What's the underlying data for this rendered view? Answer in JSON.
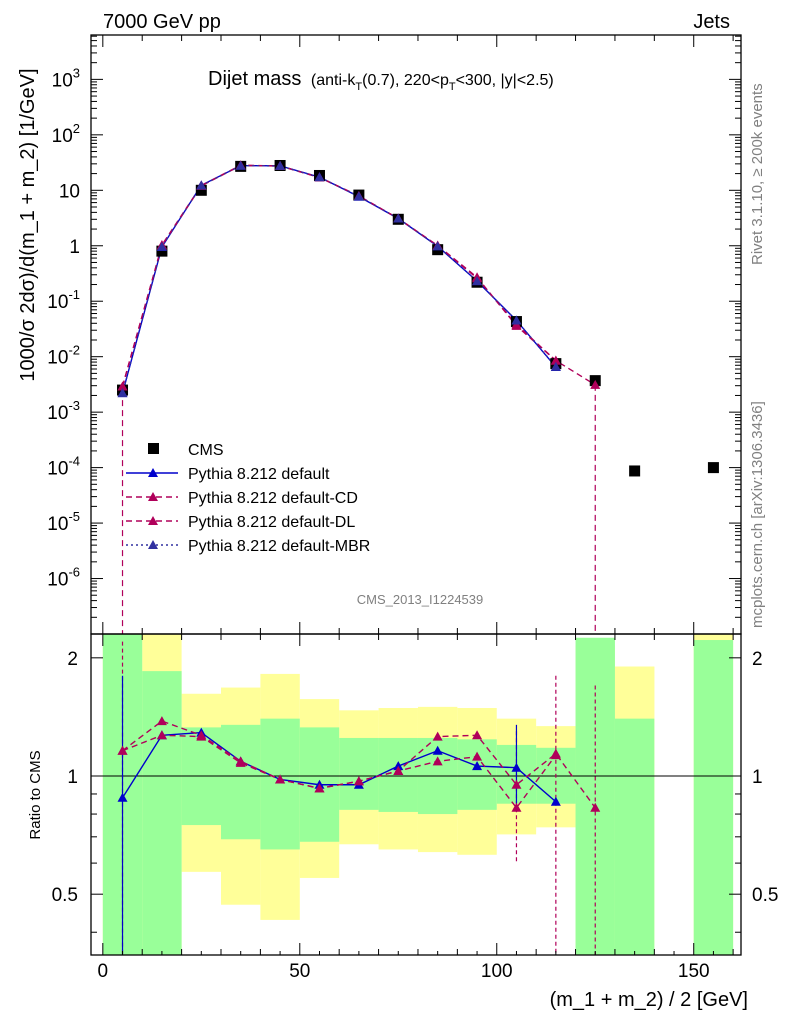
{
  "header": {
    "left": "7000 GeV pp",
    "right": "Jets"
  },
  "side": {
    "rivet": "Rivet 3.1.10, ≥ 200k events",
    "mcplots": "mcplots.cern.ch [arXiv:1306.3436]"
  },
  "plot": {
    "title_main": "Dijet mass",
    "title_cut": "(anti-k",
    "title_cut_sub": "T",
    "title_cut_2": "(0.7), 220<p",
    "title_cut_sub2": "T",
    "title_cut_3": "<300, |y|<2.5)",
    "analysis": "CMS_2013_I1224539",
    "ylabel": "1000/σ 2dσ)/d(m_1 + m_2) [1/GeV]",
    "ratio_ylabel": "Ratio to CMS",
    "xlabel": "(m_1 + m_2) / 2 [GeV]"
  },
  "legend": [
    {
      "label": "CMS",
      "color": "#000000",
      "style": "square"
    },
    {
      "label": "Pythia 8.212 default",
      "color": "#0000cc",
      "style": "solid"
    },
    {
      "label": "Pythia 8.212 default-CD",
      "color": "#b0005a",
      "style": "dashed"
    },
    {
      "label": "Pythia 8.212 default-DL",
      "color": "#b0005a",
      "style": "dashed"
    },
    {
      "label": "Pythia 8.212 default-MBR",
      "color": "#3030a0",
      "style": "dotted"
    }
  ],
  "chart_data": {
    "type": "line",
    "xlim": [
      -3,
      162
    ],
    "main_ylim_log10": [
      -7,
      3.8
    ],
    "ratio_ylim": [
      0.35,
      2.3
    ],
    "x_ticks": [
      0,
      50,
      100,
      150
    ],
    "main_y_ticks": [
      "10^{-6}",
      "10^{-5}",
      "10^{-4}",
      "10^{-3}",
      "10^{-2}",
      "10^{-1}",
      "1",
      "10",
      "10^{2}",
      "10^{3}"
    ],
    "ratio_y_ticks": [
      "0.5",
      "1",
      "2"
    ],
    "bin_edges": [
      0,
      10,
      20,
      30,
      40,
      50,
      60,
      70,
      80,
      90,
      100,
      110,
      120,
      130,
      140,
      150,
      160
    ],
    "series": [
      {
        "name": "CMS",
        "x": [
          5,
          15,
          25,
          35,
          45,
          55,
          65,
          75,
          85,
          95,
          105,
          115,
          125,
          135,
          155
        ],
        "y": [
          0.0025,
          0.8,
          10,
          27,
          28,
          18.5,
          8.2,
          3.0,
          0.85,
          0.22,
          0.043,
          0.0075,
          0.0037,
          8.7e-05,
          0.0001
        ]
      },
      {
        "name": "Pythia 8.212 default",
        "x": [
          5,
          15,
          25,
          35,
          45,
          55,
          65,
          75,
          85,
          95,
          105,
          115
        ],
        "y": [
          0.0022,
          0.95,
          12.3,
          27.8,
          27.6,
          17.3,
          7.7,
          3.1,
          0.98,
          0.23,
          0.045,
          0.0065
        ]
      },
      {
        "name": "Pythia 8.212 default-CD",
        "x": [
          5,
          15,
          25,
          35,
          45,
          55,
          65,
          75,
          85,
          95,
          105,
          115,
          125
        ],
        "y": [
          0.0029,
          1.03,
          12.2,
          28.3,
          27.4,
          17.1,
          7.9,
          3.1,
          1.01,
          0.27,
          0.036,
          0.0085,
          0.0031
        ]
      },
      {
        "name": "Pythia 8.212 default-DL",
        "x": [
          5,
          15,
          25,
          35,
          45,
          55,
          65,
          75,
          85,
          95,
          105,
          115
        ],
        "y": [
          0.0029,
          1.0,
          12.0,
          28.0,
          27.5,
          17.0,
          7.9,
          3.1,
          1.0,
          0.26,
          0.038,
          0.0085
        ]
      },
      {
        "name": "Pythia 8.212 default-MBR",
        "x": [
          5,
          15,
          25,
          35,
          45,
          55,
          65,
          75,
          85,
          95,
          105,
          115
        ],
        "y": [
          0.0022,
          0.96,
          12.2,
          27.7,
          27.5,
          17.2,
          7.8,
          3.1,
          0.98,
          0.23,
          0.045,
          0.0066
        ]
      }
    ],
    "ratio_series": [
      {
        "name": "Pythia 8.212 default",
        "x": [
          5,
          15,
          25,
          35,
          45,
          55,
          65,
          75,
          85,
          95,
          105,
          115
        ],
        "y": [
          0.88,
          1.27,
          1.29,
          1.09,
          0.98,
          0.95,
          0.95,
          1.06,
          1.16,
          1.06,
          1.05,
          0.86
        ]
      },
      {
        "name": "Pythia 8.212 default-CD",
        "x": [
          5,
          15,
          25,
          35,
          45,
          55,
          65,
          75,
          85,
          95,
          105,
          115,
          125
        ],
        "y": [
          1.16,
          1.38,
          1.27,
          1.09,
          0.98,
          0.93,
          0.97,
          1.03,
          1.26,
          1.27,
          0.95,
          1.14,
          0.83
        ]
      },
      {
        "name": "Pythia 8.212 default-DL",
        "x": [
          5,
          15,
          25,
          35,
          45,
          55,
          65,
          75,
          85,
          95,
          105,
          115
        ],
        "y": [
          1.16,
          1.27,
          1.26,
          1.08,
          0.98,
          0.93,
          0.97,
          1.03,
          1.09,
          1.12,
          0.83,
          1.13
        ]
      }
    ],
    "uncertainty_bands": {
      "yellow": [
        [
          0,
          0,
          9.9
        ],
        [
          10,
          0,
          9.9
        ],
        [
          20,
          0.57,
          1.62
        ],
        [
          30,
          0.47,
          1.68
        ],
        [
          40,
          0.43,
          1.82
        ],
        [
          50,
          0.55,
          1.57
        ],
        [
          60,
          0.67,
          1.47
        ],
        [
          70,
          0.65,
          1.49
        ],
        [
          80,
          0.64,
          1.5
        ],
        [
          90,
          0.63,
          1.49
        ],
        [
          100,
          0.71,
          1.4
        ],
        [
          110,
          0.74,
          1.34
        ],
        [
          120,
          0,
          2.15
        ],
        [
          130,
          0.6,
          1.9
        ],
        [
          150,
          0,
          9.9
        ]
      ],
      "green": [
        [
          0,
          0,
          9.9
        ],
        [
          10,
          0,
          1.85
        ],
        [
          20,
          0.75,
          1.33
        ],
        [
          30,
          0.69,
          1.35
        ],
        [
          40,
          0.65,
          1.4
        ],
        [
          50,
          0.68,
          1.33
        ],
        [
          60,
          0.82,
          1.25
        ],
        [
          70,
          0.81,
          1.25
        ],
        [
          80,
          0.8,
          1.25
        ],
        [
          90,
          0.82,
          1.24
        ],
        [
          100,
          0.85,
          1.2
        ],
        [
          110,
          0.85,
          1.18
        ],
        [
          120,
          0,
          2.25
        ],
        [
          130,
          0,
          1.4
        ],
        [
          150,
          0,
          2.22
        ]
      ]
    }
  }
}
